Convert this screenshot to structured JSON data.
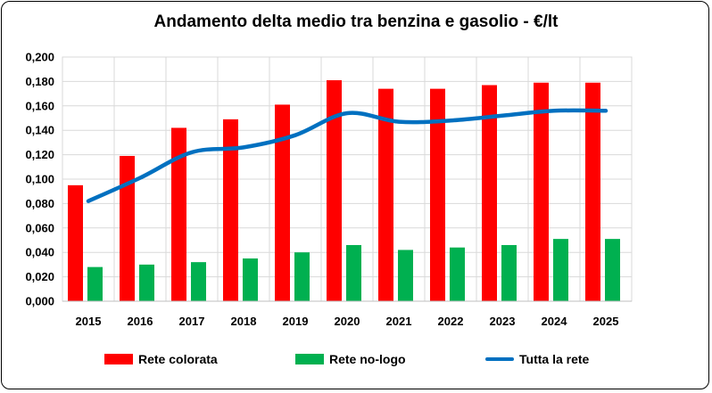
{
  "chart_data": {
    "type": "bar",
    "title": "Andamento delta medio tra benzina e gasolio - €/lt",
    "xlabel": "",
    "ylabel": "",
    "categories": [
      "2015",
      "2016",
      "2017",
      "2018",
      "2019",
      "2020",
      "2021",
      "2022",
      "2023",
      "2024",
      "2025"
    ],
    "ylim": [
      0,
      0.2
    ],
    "yticks": [
      "0,000",
      "0,020",
      "0,040",
      "0,060",
      "0,080",
      "0,100",
      "0,120",
      "0,140",
      "0,160",
      "0,180",
      "0,200"
    ],
    "grid": true,
    "legend_position": "bottom",
    "series": [
      {
        "name": "Rete colorata",
        "kind": "bar",
        "color": "#ff0000",
        "values": [
          0.095,
          0.119,
          0.142,
          0.149,
          0.161,
          0.181,
          0.174,
          0.174,
          0.177,
          0.179,
          0.179
        ]
      },
      {
        "name": "Rete no-logo",
        "kind": "bar",
        "color": "#00b050",
        "values": [
          0.028,
          0.03,
          0.032,
          0.035,
          0.04,
          0.046,
          0.042,
          0.044,
          0.046,
          0.051,
          0.051
        ]
      },
      {
        "name": "Tutta la rete",
        "kind": "line",
        "color": "#0070c0",
        "values": [
          0.082,
          0.101,
          0.122,
          0.126,
          0.136,
          0.154,
          0.147,
          0.148,
          0.152,
          0.156,
          0.156
        ]
      }
    ]
  }
}
